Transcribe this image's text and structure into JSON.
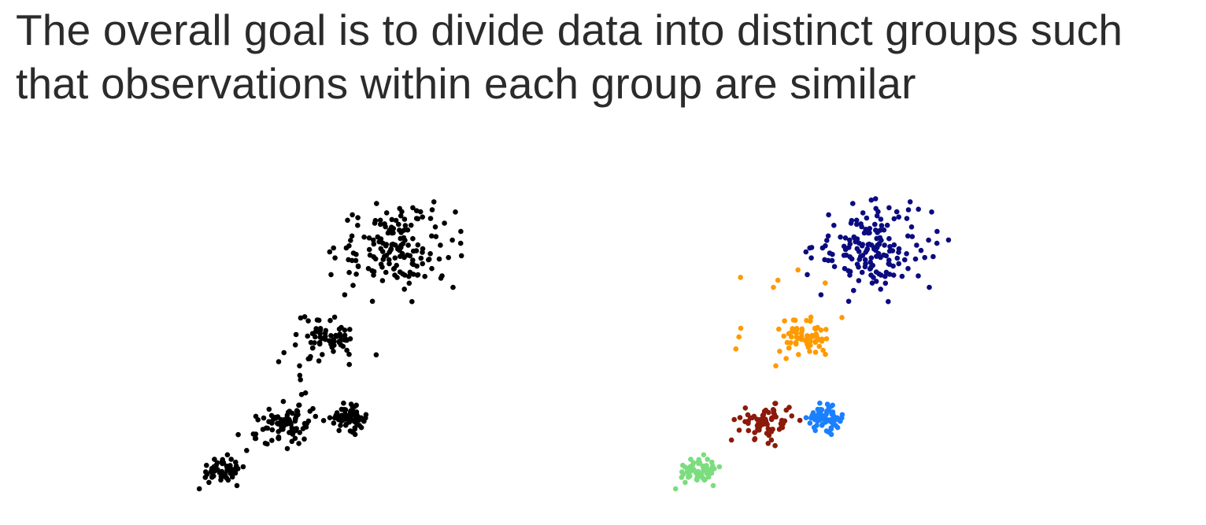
{
  "slide": {
    "heading_line_1": "The overall goal is to divide data into distinct groups such",
    "heading_line_2": "that observations within each group are similar"
  },
  "colors": {
    "background": "#ffffff",
    "heading_text": "#2b2b2b",
    "unclustered_points": "#000000"
  },
  "chart_data": [
    {
      "type": "scatter",
      "title": "",
      "xlabel": "",
      "ylabel": "",
      "axes_visible": false,
      "grid": false,
      "series": [
        {
          "color": "#000000",
          "groups": [
            {
              "center": [
                1.4,
                1.0
              ],
              "spread": [
                0.18,
                0.16
              ],
              "count": 55
            },
            {
              "center": [
                2.5,
                2.2
              ],
              "spread": [
                0.22,
                0.2
              ],
              "count": 70
            },
            {
              "center": [
                3.4,
                2.3
              ],
              "spread": [
                0.13,
                0.13
              ],
              "count": 75
            },
            {
              "center": [
                3.1,
                4.2
              ],
              "spread": [
                0.24,
                0.22
              ],
              "count": 65
            },
            {
              "center": [
                4.2,
                6.5
              ],
              "spread": [
                0.46,
                0.52
              ],
              "count": 160
            },
            {
              "center": [
                2.7,
                3.7
              ],
              "spread": [
                0.45,
                0.48
              ],
              "count": 15
            },
            {
              "center": [
                2.2,
                1.9
              ],
              "spread": [
                0.25,
                0.25
              ],
              "count": 20
            }
          ]
        }
      ]
    },
    {
      "type": "scatter",
      "title": "",
      "xlabel": "",
      "ylabel": "",
      "axes_visible": false,
      "grid": false,
      "series": [
        {
          "color": "#7bdd7e",
          "groups": [
            {
              "center": [
                1.4,
                1.0
              ],
              "spread": [
                0.18,
                0.16
              ],
              "count": 58
            }
          ]
        },
        {
          "color": "#8c1a0a",
          "groups": [
            {
              "center": [
                2.5,
                2.2
              ],
              "spread": [
                0.22,
                0.22
              ],
              "count": 72
            }
          ]
        },
        {
          "color": "#1a80ff",
          "groups": [
            {
              "center": [
                3.4,
                2.3
              ],
              "spread": [
                0.13,
                0.13
              ],
              "count": 75
            }
          ]
        },
        {
          "color": "#ff9a00",
          "groups": [
            {
              "center": [
                3.1,
                4.2
              ],
              "spread": [
                0.24,
                0.22
              ],
              "count": 65
            },
            {
              "center": [
                2.7,
                5.0
              ],
              "spread": [
                0.45,
                0.55
              ],
              "count": 12
            }
          ]
        },
        {
          "color": "#0b0b80",
          "groups": [
            {
              "center": [
                4.2,
                6.5
              ],
              "spread": [
                0.46,
                0.52
              ],
              "count": 165
            }
          ]
        }
      ]
    }
  ]
}
